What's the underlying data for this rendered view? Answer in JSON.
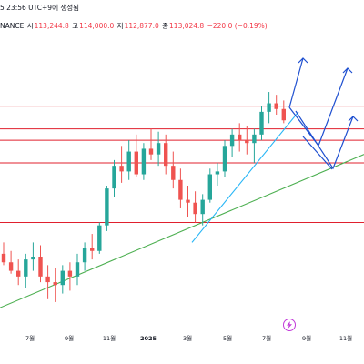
{
  "header": {
    "timestamp": "5 23:56 UTC+9에 생성됨",
    "exchange": "NANCE",
    "open_label": "시",
    "open_value": "113,244.8",
    "high_label": "고",
    "high_value": "114,000.0",
    "low_label": "저",
    "low_value": "112,877.0",
    "close_label": "종",
    "close_value": "113,024.8",
    "change": "−220.0 (−0.19%)"
  },
  "colors": {
    "up": "#26a69a",
    "down": "#ef5350",
    "hline": "#e0202e",
    "trend_green": "#4caf50",
    "trend_cyan": "#29b6f6",
    "arrow_blue": "#1e4fd0",
    "lightning": "#c23ad9"
  },
  "icons": {
    "event": "lightning-icon"
  },
  "chart_data": {
    "type": "candlestick",
    "x_ticks": [
      "7월",
      "9월",
      "11월",
      "2025",
      "3월",
      "5월",
      "7월",
      "9월",
      "11월"
    ],
    "year_tick": "2025",
    "ylim": [
      40000,
      140000
    ],
    "key_levels": [
      118000,
      110000,
      106000,
      98000,
      77000
    ],
    "candles": [
      {
        "t": 0,
        "o": 66000,
        "h": 70000,
        "l": 62000,
        "c": 63000
      },
      {
        "t": 1,
        "o": 63000,
        "h": 67000,
        "l": 59000,
        "c": 60000
      },
      {
        "t": 2,
        "o": 60000,
        "h": 64000,
        "l": 55000,
        "c": 58000
      },
      {
        "t": 3,
        "o": 58000,
        "h": 66000,
        "l": 54000,
        "c": 64000
      },
      {
        "t": 4,
        "o": 64000,
        "h": 70000,
        "l": 60000,
        "c": 65000
      },
      {
        "t": 5,
        "o": 65000,
        "h": 69000,
        "l": 56000,
        "c": 58000
      },
      {
        "t": 6,
        "o": 58000,
        "h": 62000,
        "l": 50000,
        "c": 56000
      },
      {
        "t": 7,
        "o": 56000,
        "h": 61000,
        "l": 49000,
        "c": 55000
      },
      {
        "t": 8,
        "o": 55000,
        "h": 62000,
        "l": 52000,
        "c": 60000
      },
      {
        "t": 9,
        "o": 60000,
        "h": 63000,
        "l": 53000,
        "c": 58000
      },
      {
        "t": 10,
        "o": 58000,
        "h": 66000,
        "l": 55000,
        "c": 63000
      },
      {
        "t": 11,
        "o": 63000,
        "h": 70000,
        "l": 60000,
        "c": 68000
      },
      {
        "t": 12,
        "o": 68000,
        "h": 73000,
        "l": 64000,
        "c": 67000
      },
      {
        "t": 13,
        "o": 67000,
        "h": 77000,
        "l": 66000,
        "c": 76000
      },
      {
        "t": 14,
        "o": 76000,
        "h": 90000,
        "l": 74000,
        "c": 89000
      },
      {
        "t": 15,
        "o": 89000,
        "h": 99000,
        "l": 86000,
        "c": 97000
      },
      {
        "t": 16,
        "o": 97000,
        "h": 104000,
        "l": 91000,
        "c": 95000
      },
      {
        "t": 17,
        "o": 95000,
        "h": 106000,
        "l": 92000,
        "c": 102000
      },
      {
        "t": 18,
        "o": 102000,
        "h": 108000,
        "l": 93000,
        "c": 94000
      },
      {
        "t": 19,
        "o": 94000,
        "h": 105000,
        "l": 92000,
        "c": 103000
      },
      {
        "t": 20,
        "o": 103000,
        "h": 110000,
        "l": 99000,
        "c": 101000
      },
      {
        "t": 21,
        "o": 101000,
        "h": 109000,
        "l": 97000,
        "c": 105000
      },
      {
        "t": 22,
        "o": 105000,
        "h": 108000,
        "l": 94000,
        "c": 97000
      },
      {
        "t": 23,
        "o": 97000,
        "h": 102000,
        "l": 89000,
        "c": 92000
      },
      {
        "t": 24,
        "o": 92000,
        "h": 96000,
        "l": 82000,
        "c": 85000
      },
      {
        "t": 25,
        "o": 85000,
        "h": 90000,
        "l": 79000,
        "c": 84000
      },
      {
        "t": 26,
        "o": 84000,
        "h": 88000,
        "l": 77000,
        "c": 80000
      },
      {
        "t": 27,
        "o": 80000,
        "h": 87000,
        "l": 76000,
        "c": 85000
      },
      {
        "t": 28,
        "o": 85000,
        "h": 96000,
        "l": 84000,
        "c": 94000
      },
      {
        "t": 29,
        "o": 94000,
        "h": 98000,
        "l": 90000,
        "c": 95000
      },
      {
        "t": 30,
        "o": 95000,
        "h": 106000,
        "l": 93000,
        "c": 104000
      },
      {
        "t": 31,
        "o": 104000,
        "h": 110000,
        "l": 100000,
        "c": 108000
      },
      {
        "t": 32,
        "o": 108000,
        "h": 112000,
        "l": 102000,
        "c": 106000
      },
      {
        "t": 33,
        "o": 106000,
        "h": 111000,
        "l": 101000,
        "c": 105000
      },
      {
        "t": 34,
        "o": 105000,
        "h": 110000,
        "l": 98000,
        "c": 108000
      },
      {
        "t": 35,
        "o": 108000,
        "h": 118000,
        "l": 106000,
        "c": 116000
      },
      {
        "t": 36,
        "o": 116000,
        "h": 123000,
        "l": 112000,
        "c": 119000
      },
      {
        "t": 37,
        "o": 119000,
        "h": 122000,
        "l": 115000,
        "c": 117000
      },
      {
        "t": 38,
        "o": 117000,
        "h": 120000,
        "l": 112000,
        "c": 113000
      }
    ],
    "candle_dates_note": "",
    "projection": [
      {
        "path": [
          [
            113000,
            0
          ],
          [
            135000,
            2
          ]
        ]
      },
      {
        "path": [
          [
            113000,
            0
          ],
          [
            103000,
            1
          ],
          [
            133000,
            3
          ]
        ]
      },
      {
        "path": [
          [
            103000,
            1
          ],
          [
            95000,
            2
          ],
          [
            118000,
            3
          ]
        ]
      }
    ]
  }
}
